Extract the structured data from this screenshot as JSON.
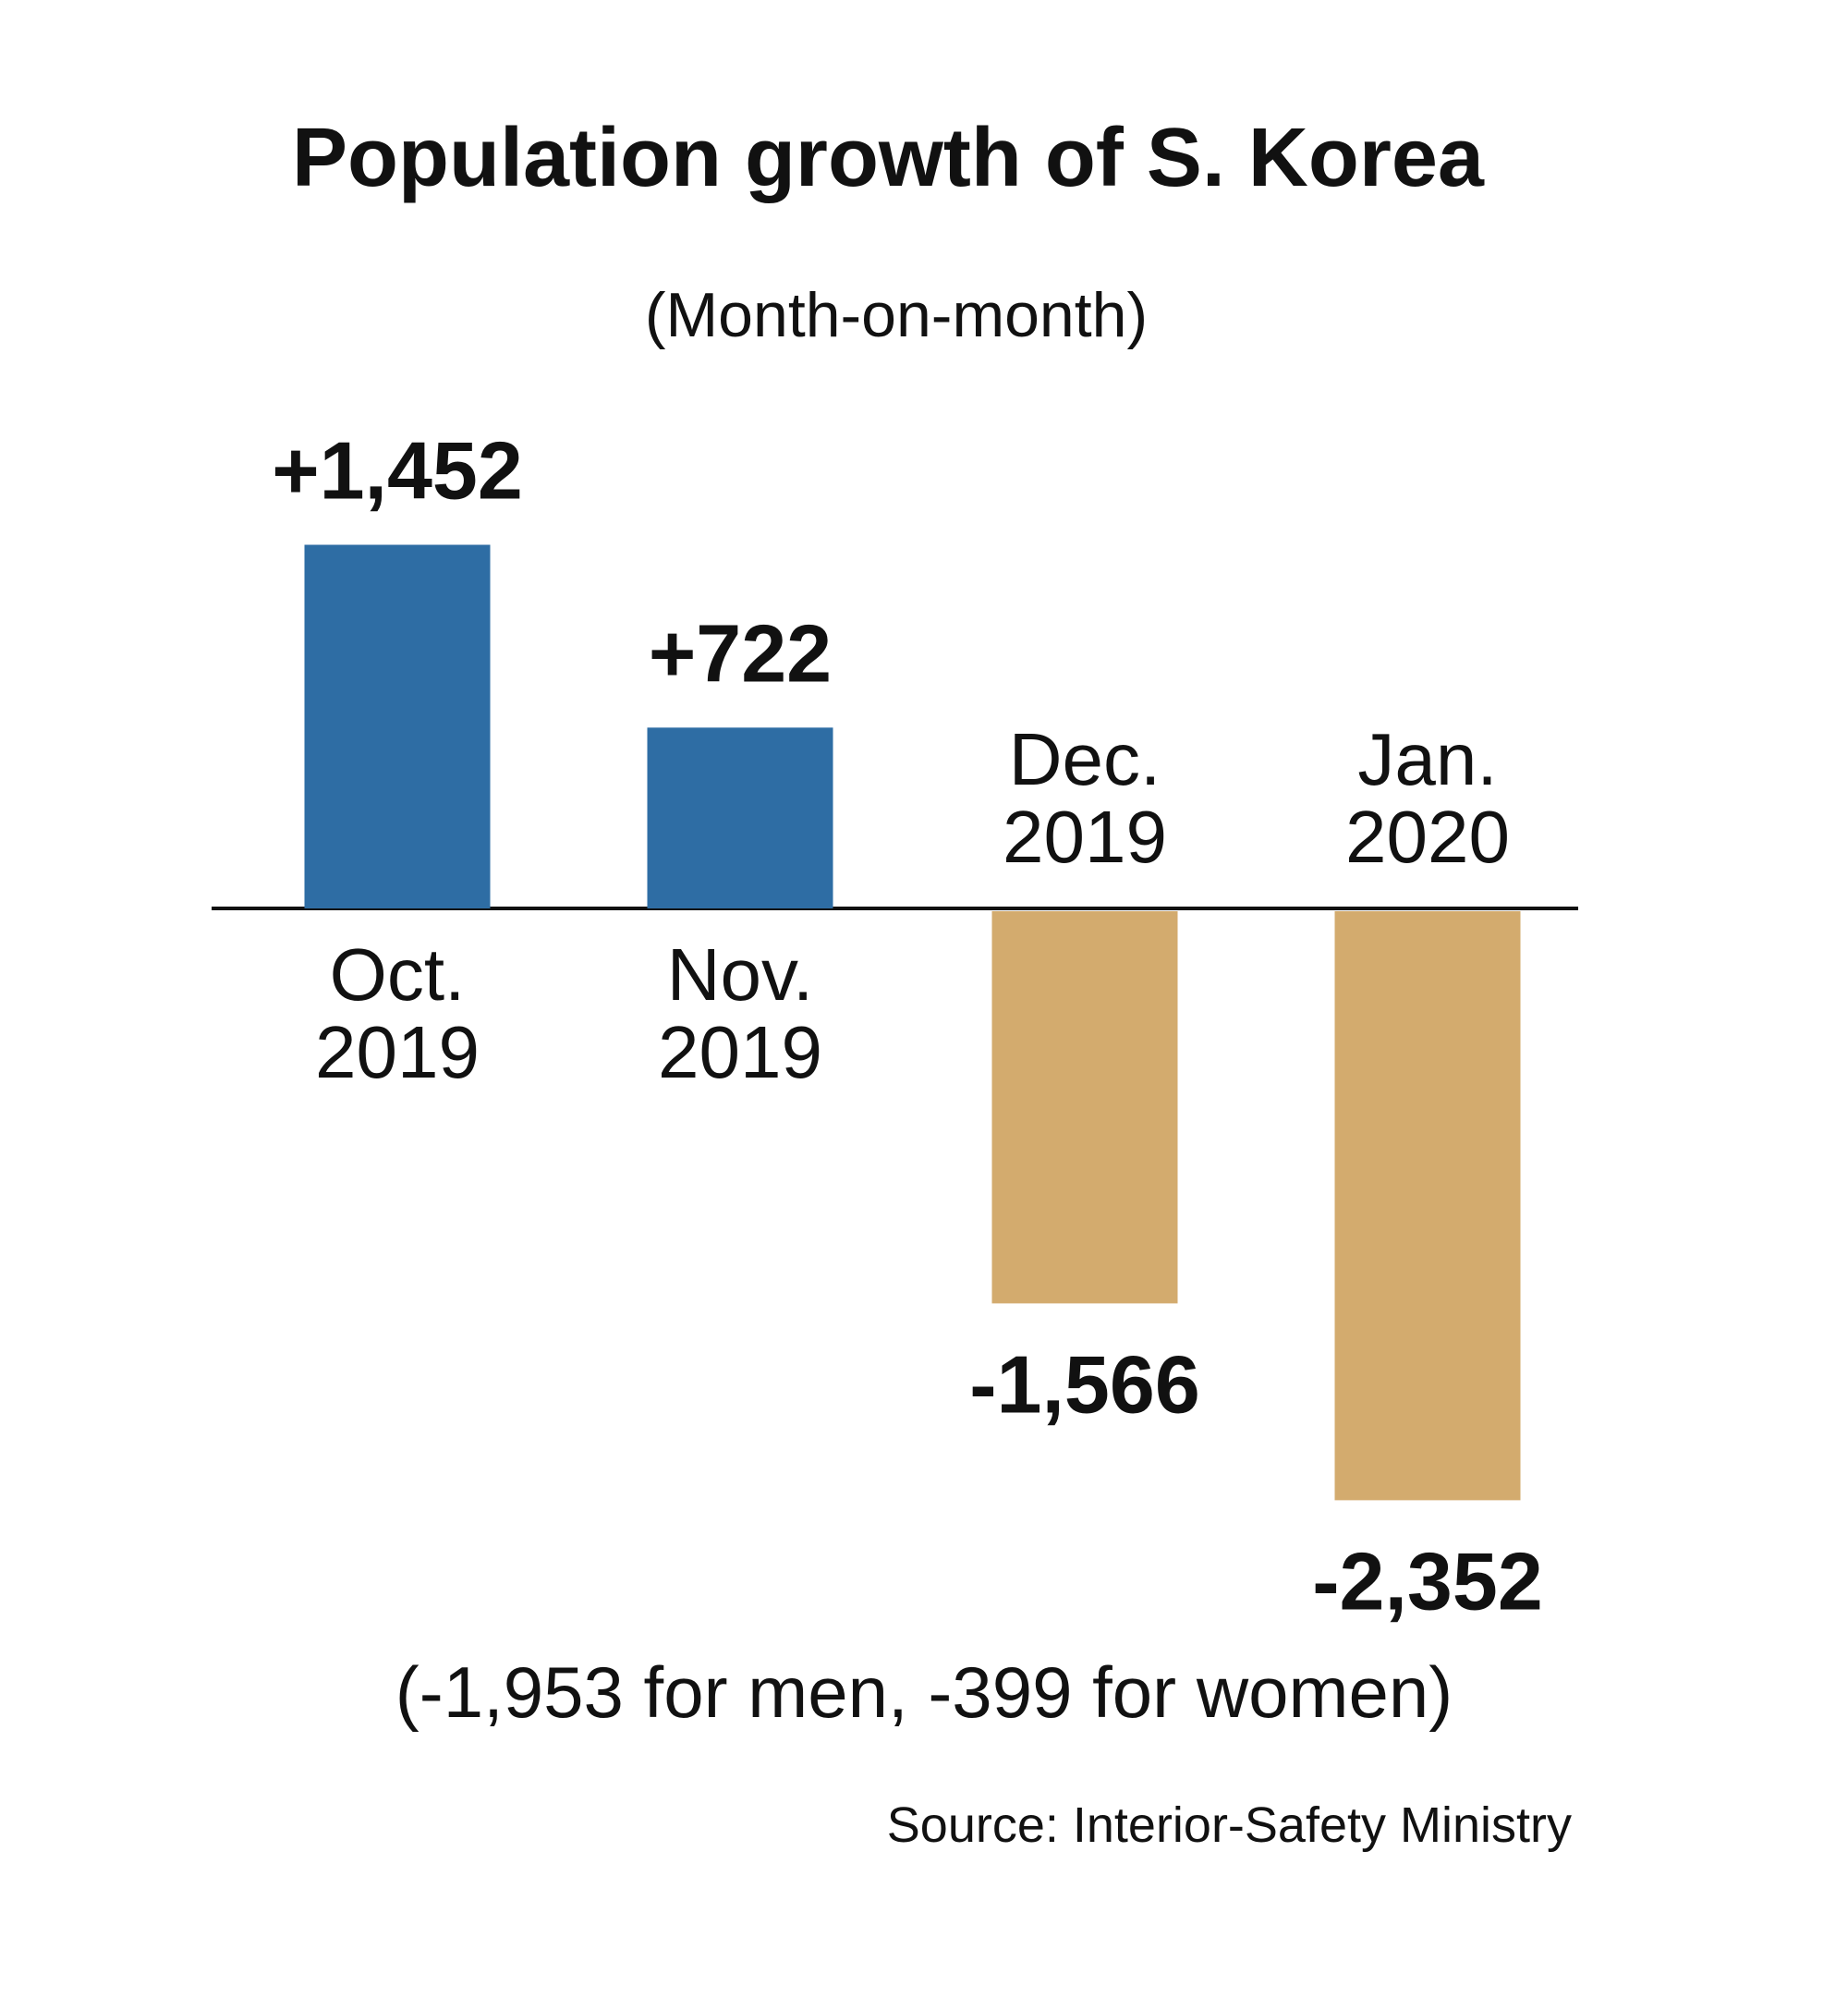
{
  "chart_data": {
    "type": "bar",
    "title": "Population growth of S. Korea",
    "subtitle": "(Month-on-month)",
    "categories": [
      "Oct. 2019",
      "Nov. 2019",
      "Dec. 2019",
      "Jan. 2020"
    ],
    "values": [
      1452,
      722,
      -1566,
      -2352
    ],
    "value_labels": [
      "+1,452",
      "+722",
      "-1,566",
      "-2,352"
    ],
    "colors": [
      "#2e6da4",
      "#2e6da4",
      "#d3ab6e",
      "#d3ab6e"
    ],
    "annotation": "(-1,953 for men, -399 for women)",
    "source": "Source: Interior-Safety Ministry"
  }
}
